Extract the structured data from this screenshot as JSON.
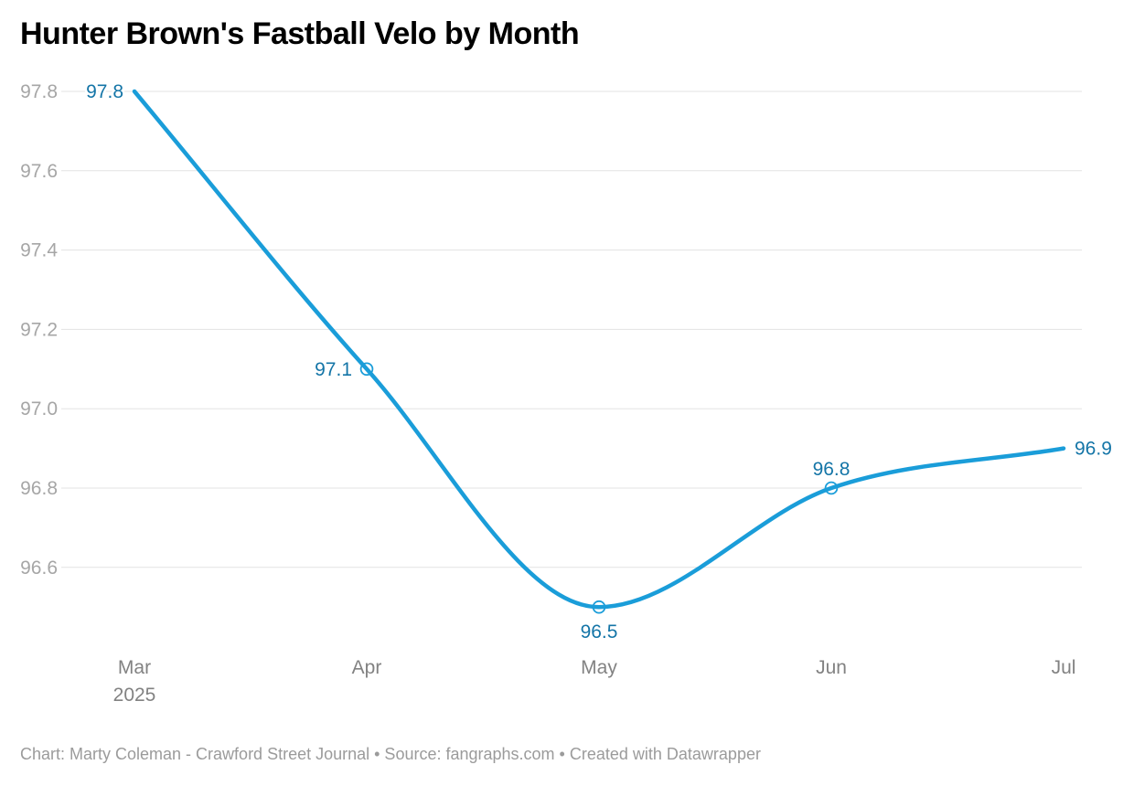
{
  "title": "Hunter Brown's Fastball Velo by Month",
  "footer": {
    "prefix": "Chart: Marty Coleman - Crawford Street Journal • Source: ",
    "source_link": "fangraphs.com",
    "separator": " • ",
    "credit": "Created with Datawrapper"
  },
  "chart_data": {
    "type": "line",
    "title": "Hunter Brown's Fastball Velo by Month",
    "x": [
      "Mar 2025",
      "Apr",
      "May",
      "Jun",
      "Jul"
    ],
    "x_tick_labels": [
      [
        "Mar",
        "2025"
      ],
      [
        "Apr"
      ],
      [
        "May"
      ],
      [
        "Jun"
      ],
      [
        "Jul"
      ]
    ],
    "series": [
      {
        "values": [
          97.8,
          97.1,
          96.5,
          96.8,
          96.9
        ]
      }
    ],
    "value_labels": [
      "97.8",
      "97.1",
      "96.5",
      "96.8",
      "96.9"
    ],
    "y_ticks": [
      97.8,
      97.6,
      97.4,
      97.2,
      97.0,
      96.8,
      96.6
    ],
    "y_tick_labels": [
      "97.8",
      "97.6",
      "97.4",
      "97.2",
      "97.0",
      "96.8",
      "96.6"
    ],
    "ylim": [
      96.44,
      97.8
    ],
    "grid": "horizontal",
    "legend": "none",
    "curve": "monotone",
    "marker_point_indices": [
      1,
      2,
      3
    ],
    "line_color": "#1a9dd9",
    "label_color": "#1475a7"
  }
}
